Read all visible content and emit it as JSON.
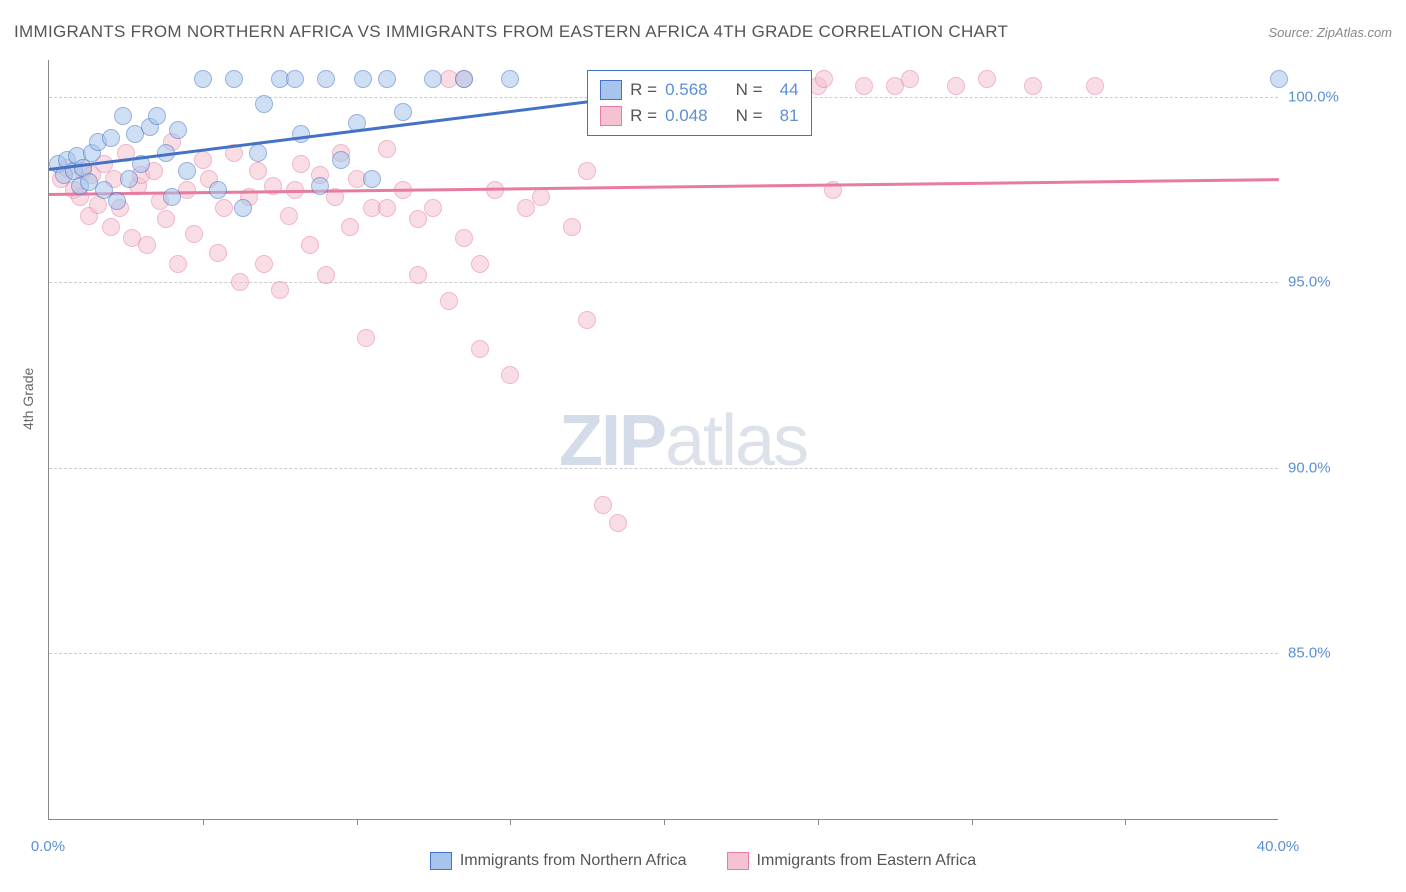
{
  "title": "IMMIGRANTS FROM NORTHERN AFRICA VS IMMIGRANTS FROM EASTERN AFRICA 4TH GRADE CORRELATION CHART",
  "source": "Source: ZipAtlas.com",
  "ylabel": "4th Grade",
  "watermark_bold": "ZIP",
  "watermark_rest": "atlas",
  "chart": {
    "type": "scatter",
    "xlim": [
      0,
      40
    ],
    "ylim": [
      80.5,
      101
    ],
    "xticks": [
      0,
      40
    ],
    "xtick_labels": [
      "0.0%",
      "40.0%"
    ],
    "xtick_minor": [
      5,
      10,
      15,
      20,
      25,
      30,
      35
    ],
    "yticks": [
      85,
      90,
      95,
      100
    ],
    "ytick_labels": [
      "85.0%",
      "90.0%",
      "95.0%",
      "100.0%"
    ],
    "background_color": "#ffffff",
    "grid_color": "#cccccc",
    "marker_radius": 9,
    "marker_opacity": 0.55,
    "line_width": 2.5,
    "series": {
      "northern": {
        "label": "Immigrants from Northern Africa",
        "color_fill": "#a7c5ec",
        "color_stroke": "#4472c4",
        "r": "0.568",
        "n": "44",
        "trend_start": [
          0,
          98.1
        ],
        "trend_end": [
          24,
          100.6
        ],
        "points": [
          [
            0.3,
            98.2
          ],
          [
            0.5,
            97.9
          ],
          [
            0.6,
            98.3
          ],
          [
            0.8,
            98.0
          ],
          [
            0.9,
            98.4
          ],
          [
            1.0,
            97.6
          ],
          [
            1.1,
            98.1
          ],
          [
            1.3,
            97.7
          ],
          [
            1.4,
            98.5
          ],
          [
            1.6,
            98.8
          ],
          [
            1.8,
            97.5
          ],
          [
            2.0,
            98.9
          ],
          [
            2.2,
            97.2
          ],
          [
            2.4,
            99.5
          ],
          [
            2.6,
            97.8
          ],
          [
            2.8,
            99.0
          ],
          [
            3.0,
            98.2
          ],
          [
            3.3,
            99.2
          ],
          [
            3.5,
            99.5
          ],
          [
            3.8,
            98.5
          ],
          [
            4.0,
            97.3
          ],
          [
            4.2,
            99.1
          ],
          [
            4.5,
            98.0
          ],
          [
            5.0,
            100.5
          ],
          [
            5.5,
            97.5
          ],
          [
            6.0,
            100.5
          ],
          [
            6.3,
            97.0
          ],
          [
            6.8,
            98.5
          ],
          [
            7.0,
            99.8
          ],
          [
            7.5,
            100.5
          ],
          [
            8.0,
            100.5
          ],
          [
            8.2,
            99.0
          ],
          [
            8.8,
            97.6
          ],
          [
            9.0,
            100.5
          ],
          [
            9.5,
            98.3
          ],
          [
            10.0,
            99.3
          ],
          [
            10.2,
            100.5
          ],
          [
            10.5,
            97.8
          ],
          [
            11.0,
            100.5
          ],
          [
            11.5,
            99.6
          ],
          [
            12.5,
            100.5
          ],
          [
            13.5,
            100.5
          ],
          [
            15.0,
            100.5
          ],
          [
            40.0,
            100.5
          ]
        ]
      },
      "eastern": {
        "label": "Immigrants from Eastern Africa",
        "color_fill": "#f5c2d1",
        "color_stroke": "#e87ba1",
        "r": "0.048",
        "n": "81",
        "trend_start": [
          0,
          97.4
        ],
        "trend_end": [
          40,
          97.8
        ],
        "points": [
          [
            0.4,
            97.8
          ],
          [
            0.6,
            98.1
          ],
          [
            0.8,
            97.5
          ],
          [
            1.0,
            97.3
          ],
          [
            1.1,
            98.0
          ],
          [
            1.3,
            96.8
          ],
          [
            1.4,
            97.9
          ],
          [
            1.6,
            97.1
          ],
          [
            1.8,
            98.2
          ],
          [
            2.0,
            96.5
          ],
          [
            2.1,
            97.8
          ],
          [
            2.3,
            97.0
          ],
          [
            2.5,
            98.5
          ],
          [
            2.7,
            96.2
          ],
          [
            2.9,
            97.6
          ],
          [
            3.0,
            97.9
          ],
          [
            3.2,
            96.0
          ],
          [
            3.4,
            98.0
          ],
          [
            3.6,
            97.2
          ],
          [
            3.8,
            96.7
          ],
          [
            4.0,
            98.8
          ],
          [
            4.2,
            95.5
          ],
          [
            4.5,
            97.5
          ],
          [
            4.7,
            96.3
          ],
          [
            5.0,
            98.3
          ],
          [
            5.2,
            97.8
          ],
          [
            5.5,
            95.8
          ],
          [
            5.7,
            97.0
          ],
          [
            6.0,
            98.5
          ],
          [
            6.2,
            95.0
          ],
          [
            6.5,
            97.3
          ],
          [
            6.8,
            98.0
          ],
          [
            7.0,
            95.5
          ],
          [
            7.3,
            97.6
          ],
          [
            7.5,
            94.8
          ],
          [
            7.8,
            96.8
          ],
          [
            8.0,
            97.5
          ],
          [
            8.2,
            98.2
          ],
          [
            8.5,
            96.0
          ],
          [
            8.8,
            97.9
          ],
          [
            9.0,
            95.2
          ],
          [
            9.3,
            97.3
          ],
          [
            9.5,
            98.5
          ],
          [
            9.8,
            96.5
          ],
          [
            10.0,
            97.8
          ],
          [
            10.3,
            93.5
          ],
          [
            10.5,
            97.0
          ],
          [
            11.0,
            97.0
          ],
          [
            11.0,
            98.6
          ],
          [
            11.5,
            97.5
          ],
          [
            12.0,
            96.7
          ],
          [
            12.0,
            95.2
          ],
          [
            12.5,
            97.0
          ],
          [
            13.0,
            94.5
          ],
          [
            13.0,
            100.5
          ],
          [
            13.5,
            96.2
          ],
          [
            13.5,
            100.5
          ],
          [
            14.0,
            93.2
          ],
          [
            14.0,
            95.5
          ],
          [
            14.5,
            97.5
          ],
          [
            15.0,
            92.5
          ],
          [
            15.5,
            97.0
          ],
          [
            16.0,
            97.3
          ],
          [
            17.0,
            96.5
          ],
          [
            17.5,
            94.0
          ],
          [
            17.5,
            98.0
          ],
          [
            18.0,
            89.0
          ],
          [
            18.5,
            88.5
          ],
          [
            22.0,
            100.3
          ],
          [
            23.0,
            100.5
          ],
          [
            23.2,
            100.3
          ],
          [
            25.0,
            100.3
          ],
          [
            25.2,
            100.5
          ],
          [
            25.5,
            97.5
          ],
          [
            26.5,
            100.3
          ],
          [
            27.5,
            100.3
          ],
          [
            28.0,
            100.5
          ],
          [
            29.5,
            100.3
          ],
          [
            30.5,
            100.5
          ],
          [
            32.0,
            100.3
          ],
          [
            34.0,
            100.3
          ]
        ]
      }
    }
  },
  "legend_box": {
    "R_label": "R =",
    "N_label": "N ="
  }
}
